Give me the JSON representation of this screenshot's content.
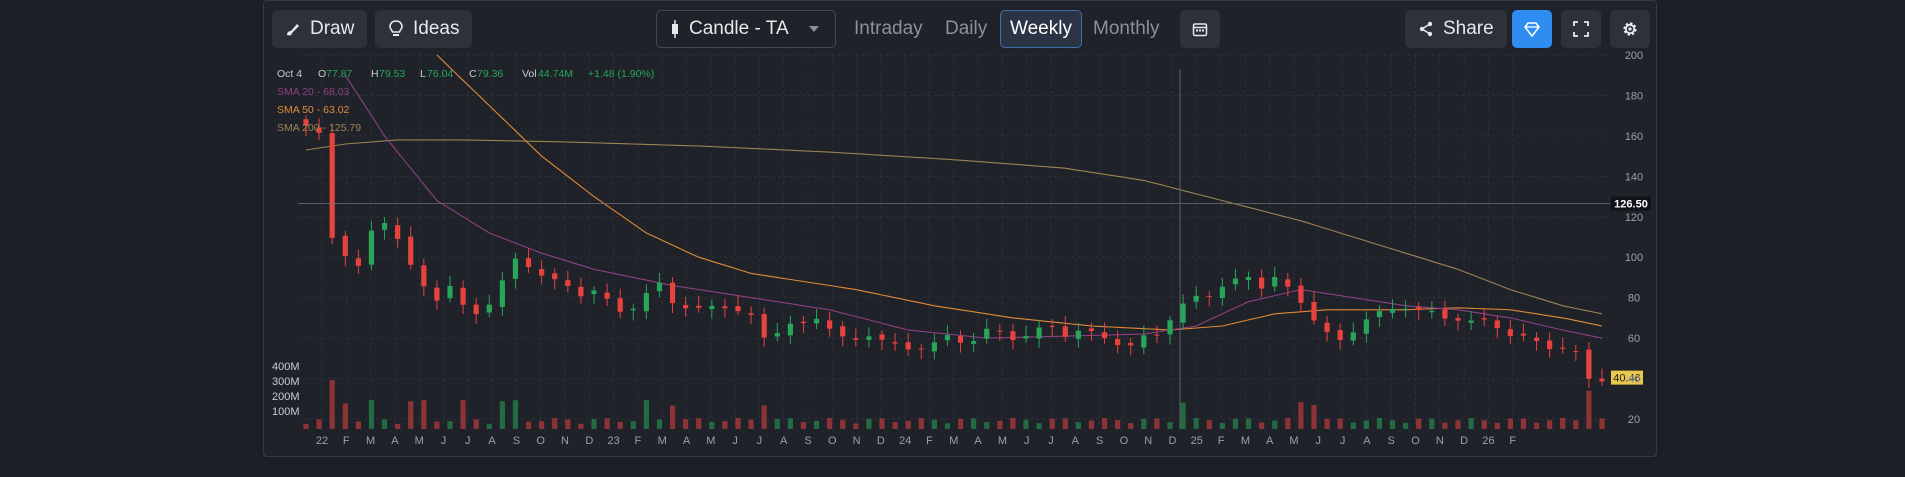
{
  "toolbar": {
    "draw_label": "Draw",
    "ideas_label": "Ideas",
    "chart_type_label": "Candle - TA",
    "timeframes": [
      "Intraday",
      "Daily",
      "Weekly",
      "Monthly"
    ],
    "active_timeframe": "Weekly",
    "share_label": "Share",
    "accent_color": "#2f8cf0"
  },
  "legend": {
    "date": "Oct 4",
    "o_label": "O",
    "o_value": "77.87",
    "h_label": "H",
    "h_value": "79.53",
    "l_label": "L",
    "l_value": "76.04",
    "c_label": "C",
    "c_value": "79.36",
    "vol_label": "Vol",
    "vol_value": "44.74M",
    "change": "+1.48 (1.90%)",
    "sma20": "SMA 20 - 68.03",
    "sma50": "SMA 50 - 63.02",
    "sma200": "SMA 200 - 125.79"
  },
  "chart_data": {
    "type": "candlestick",
    "interval": "weekly",
    "y_ticks": [
      20,
      40,
      60,
      80,
      100,
      120,
      140,
      160,
      180,
      200
    ],
    "ylim": [
      20,
      200
    ],
    "crosshair_price": "126.50",
    "last_price": "40.46",
    "volume_ticks": [
      "100M",
      "200M",
      "300M",
      "400M"
    ],
    "x_labels": [
      "22",
      "F",
      "M",
      "A",
      "M",
      "J",
      "J",
      "A",
      "S",
      "O",
      "N",
      "D",
      "23",
      "F",
      "M",
      "A",
      "M",
      "J",
      "J",
      "A",
      "S",
      "O",
      "N",
      "D",
      "24",
      "F",
      "M",
      "A",
      "M",
      "J",
      "J",
      "A",
      "S",
      "O",
      "N",
      "D",
      "25",
      "F",
      "M",
      "A",
      "M",
      "J",
      "J",
      "A",
      "S",
      "O",
      "N",
      "D",
      "26",
      "F"
    ],
    "colors": {
      "up": "#27a55a",
      "down": "#e8423f",
      "sma20": "#8e3f83",
      "sma50": "#e18a35",
      "sma200": "#9c8452"
    },
    "close_keypoints": [
      [
        0,
        165
      ],
      [
        1,
        160
      ],
      [
        2,
        110
      ],
      [
        3,
        102
      ],
      [
        4,
        95
      ],
      [
        5,
        112
      ],
      [
        6,
        118
      ],
      [
        7,
        110
      ],
      [
        8,
        95
      ],
      [
        9,
        85
      ],
      [
        10,
        80
      ],
      [
        11,
        86
      ],
      [
        12,
        75
      ],
      [
        13,
        72
      ],
      [
        14,
        78
      ],
      [
        15,
        88
      ],
      [
        16,
        98
      ],
      [
        17,
        96
      ],
      [
        18,
        92
      ],
      [
        19,
        88
      ],
      [
        20,
        85
      ],
      [
        21,
        82
      ],
      [
        22,
        84
      ],
      [
        23,
        78
      ],
      [
        24,
        73
      ],
      [
        25,
        76
      ],
      [
        26,
        82
      ],
      [
        27,
        86
      ],
      [
        28,
        78
      ],
      [
        29,
        76
      ],
      [
        30,
        74
      ],
      [
        31,
        75
      ],
      [
        32,
        76
      ],
      [
        33,
        74
      ],
      [
        34,
        70
      ],
      [
        35,
        60
      ],
      [
        36,
        64
      ],
      [
        37,
        67
      ],
      [
        38,
        66
      ],
      [
        39,
        70
      ],
      [
        40,
        66
      ],
      [
        41,
        60
      ],
      [
        42,
        58
      ],
      [
        43,
        62
      ],
      [
        44,
        60
      ],
      [
        45,
        56
      ],
      [
        46,
        54
      ],
      [
        47,
        56
      ],
      [
        48,
        58
      ],
      [
        49,
        60
      ],
      [
        50,
        58
      ],
      [
        51,
        60
      ],
      [
        52,
        64
      ],
      [
        53,
        62
      ],
      [
        54,
        60
      ],
      [
        55,
        62
      ],
      [
        56,
        64
      ],
      [
        57,
        65
      ],
      [
        58,
        62
      ],
      [
        59,
        64
      ],
      [
        60,
        62
      ],
      [
        61,
        60
      ],
      [
        62,
        58
      ],
      [
        63,
        56
      ],
      [
        64,
        60
      ],
      [
        65,
        62
      ],
      [
        66,
        70
      ],
      [
        67,
        76
      ],
      [
        68,
        80
      ],
      [
        69,
        82
      ],
      [
        70,
        86
      ],
      [
        71,
        88
      ],
      [
        72,
        90
      ],
      [
        73,
        86
      ],
      [
        74,
        90
      ],
      [
        75,
        84
      ],
      [
        76,
        78
      ],
      [
        77,
        70
      ],
      [
        78,
        62
      ],
      [
        79,
        58
      ],
      [
        80,
        64
      ],
      [
        81,
        70
      ],
      [
        82,
        72
      ],
      [
        83,
        74
      ],
      [
        84,
        76
      ],
      [
        85,
        74
      ],
      [
        86,
        72
      ],
      [
        87,
        70
      ],
      [
        88,
        70
      ],
      [
        89,
        68
      ],
      [
        90,
        68
      ],
      [
        91,
        66
      ],
      [
        92,
        62
      ],
      [
        93,
        60
      ],
      [
        94,
        58
      ],
      [
        95,
        56
      ],
      [
        96,
        55
      ],
      [
        97,
        52
      ],
      [
        98,
        40
      ]
    ],
    "sma20_keypoints": [
      [
        3,
        190
      ],
      [
        6,
        160
      ],
      [
        10,
        128
      ],
      [
        14,
        112
      ],
      [
        18,
        102
      ],
      [
        22,
        94
      ],
      [
        28,
        86
      ],
      [
        34,
        80
      ],
      [
        40,
        74
      ],
      [
        46,
        64
      ],
      [
        52,
        60
      ],
      [
        58,
        61
      ],
      [
        64,
        62
      ],
      [
        68,
        66
      ],
      [
        72,
        78
      ],
      [
        76,
        84
      ],
      [
        80,
        80
      ],
      [
        84,
        76
      ],
      [
        88,
        74
      ],
      [
        92,
        70
      ],
      [
        96,
        64
      ],
      [
        99,
        60
      ]
    ],
    "sma50_keypoints": [
      [
        10,
        200
      ],
      [
        14,
        175
      ],
      [
        18,
        150
      ],
      [
        22,
        130
      ],
      [
        26,
        112
      ],
      [
        30,
        100
      ],
      [
        34,
        92
      ],
      [
        38,
        88
      ],
      [
        42,
        84
      ],
      [
        48,
        76
      ],
      [
        54,
        70
      ],
      [
        60,
        66
      ],
      [
        66,
        64
      ],
      [
        70,
        66
      ],
      [
        74,
        72
      ],
      [
        78,
        74
      ],
      [
        84,
        74
      ],
      [
        88,
        75
      ],
      [
        92,
        74
      ],
      [
        96,
        70
      ],
      [
        99,
        66
      ]
    ],
    "sma200_keypoints": [
      [
        0,
        153
      ],
      [
        3,
        156
      ],
      [
        7,
        158
      ],
      [
        12,
        158
      ],
      [
        20,
        157
      ],
      [
        30,
        155
      ],
      [
        40,
        152
      ],
      [
        50,
        148
      ],
      [
        58,
        144
      ],
      [
        64,
        138
      ],
      [
        70,
        128
      ],
      [
        76,
        118
      ],
      [
        82,
        106
      ],
      [
        88,
        94
      ],
      [
        92,
        84
      ],
      [
        96,
        76
      ],
      [
        99,
        72
      ]
    ]
  }
}
